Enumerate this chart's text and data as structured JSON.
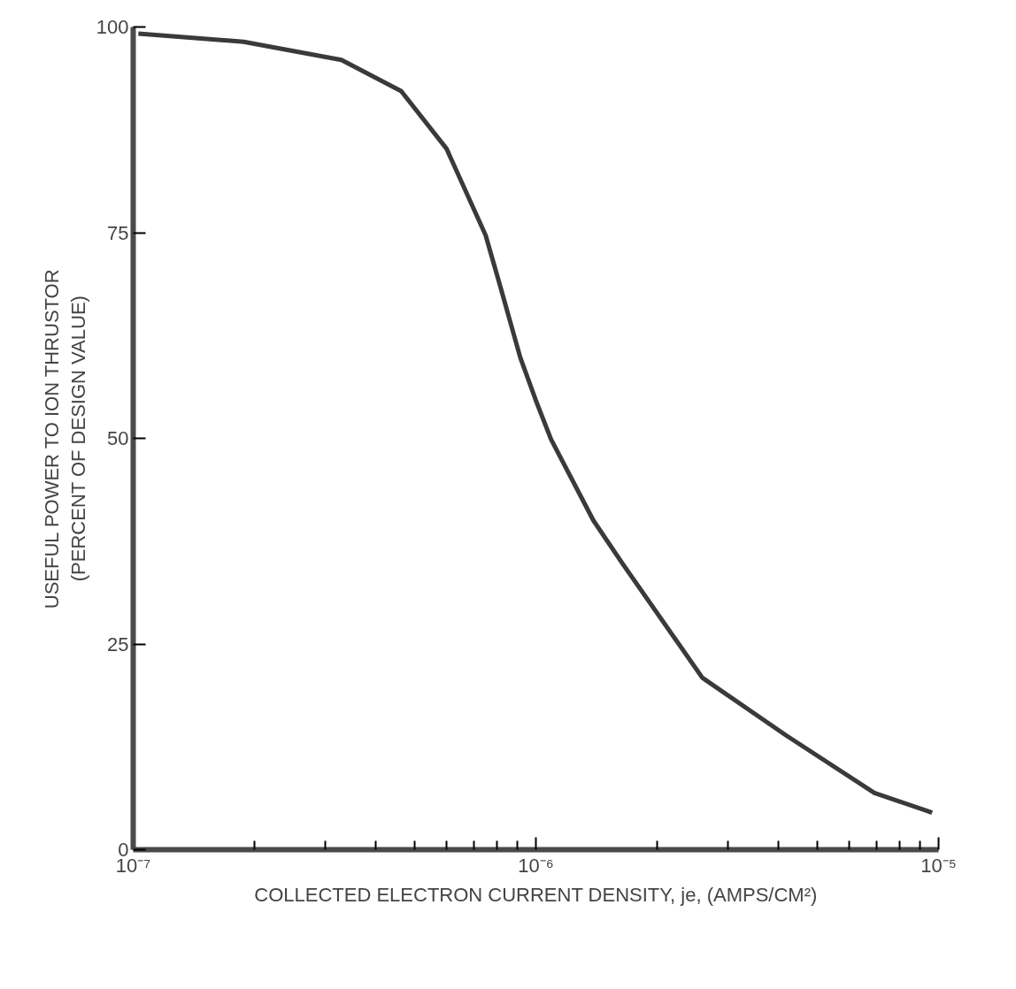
{
  "chart_data": {
    "type": "line",
    "xlabel": "COLLECTED ELECTRON CURRENT DENSITY, je, (AMPS/CM²)",
    "ylabel": "USEFUL POWER TO ION THRUSTOR\n(PERCENT OF DESIGN VALUE)",
    "log": "x",
    "grid": false,
    "marker": "none",
    "line_style": "solid",
    "xlim": [
      1e-07,
      1e-05
    ],
    "xticks": [
      {
        "value": 1e-07,
        "label": "10⁻⁷"
      },
      {
        "value": 1e-06,
        "label": "10⁻⁶"
      },
      {
        "value": 1e-05,
        "label": "10⁻⁵"
      }
    ],
    "ylim": [
      0,
      100
    ],
    "yticks": [
      0,
      25,
      50,
      75,
      100
    ],
    "series": [
      {
        "color": "#3a3a3a",
        "x": [
          1.03e-07,
          1.88e-07,
          3.29e-07,
          4.63e-07,
          6e-07,
          7.5e-07,
          8.1e-07,
          9.15e-07,
          1e-06,
          1.09e-06,
          1.39e-06,
          1.64e-06,
          2.59e-06,
          4.18e-06,
          6.93e-06,
          9.64e-06
        ],
        "values": [
          99.2,
          98.2,
          96.0,
          92.2,
          85.2,
          74.7,
          69,
          59.8,
          54.6,
          49.9,
          40.0,
          34.8,
          20.9,
          13.9,
          6.9,
          4.5
        ]
      }
    ]
  }
}
